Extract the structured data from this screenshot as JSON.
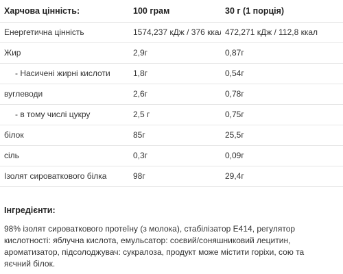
{
  "table": {
    "headers": [
      "Харчова цінність:",
      "100 грам",
      "30 г (1 порція)"
    ],
    "rows": [
      {
        "name": "Енергетична цінність",
        "per100": "1574,237 кДж / 376 ккал",
        "perServing": "472,271 кДж / 112,8 ккал",
        "sub": false
      },
      {
        "name": "Жир",
        "per100": "2,9г",
        "perServing": "0,87г",
        "sub": false
      },
      {
        "name": "- Насичені жирні кислоти",
        "per100": "1,8г",
        "perServing": "0,54г",
        "sub": true
      },
      {
        "name": "вуглеводи",
        "per100": "2,6г",
        "perServing": "0,78г",
        "sub": false
      },
      {
        "name": "- в тому числі цукру",
        "per100": "2,5 г",
        "perServing": "0,75г",
        "sub": true
      },
      {
        "name": "білок",
        "per100": "85г",
        "perServing": "25,5г",
        "sub": false
      },
      {
        "name": "сіль",
        "per100": "0,3г",
        "perServing": "0,09г",
        "sub": false
      },
      {
        "name": "Ізолят сироваткового білка",
        "per100": "98г",
        "perServing": "29,4г",
        "sub": false
      }
    ]
  },
  "ingredients": {
    "title": "Інгредієнти:",
    "text": "98% ізолят сироваткового протеїну (з молока), стабілізатор Е414, регулятор кислотності: яблучна кислота, емульсатор: соєвий/соняшниковий лецитин, ароматизатор, підсолоджувач: сукралоза, продукт може містити горіхи, сою та яєчний білок."
  }
}
